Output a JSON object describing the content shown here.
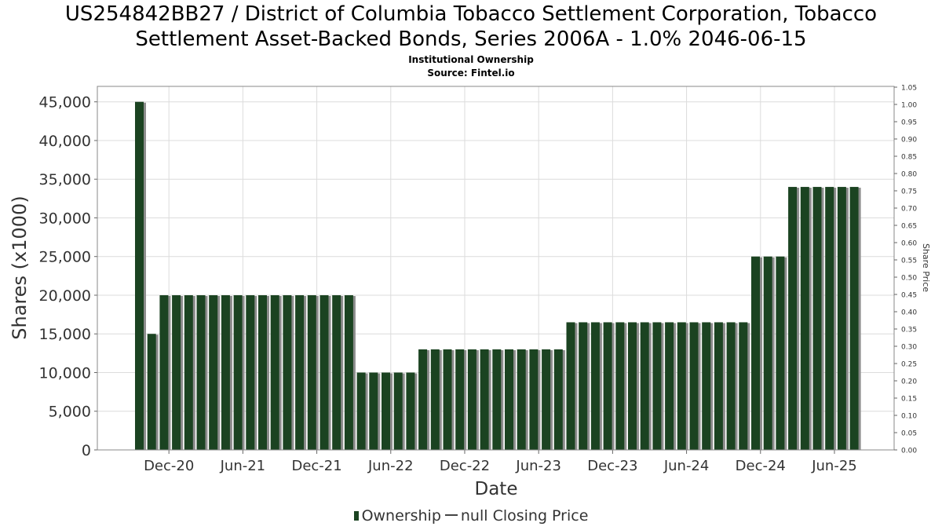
{
  "chart_data": {
    "type": "bar",
    "title_lines": [
      "US254842BB27 / District of Columbia Tobacco Settlement Corporation, Tobacco",
      "Settlement Asset-Backed Bonds, Series 2006A - 1.0% 2046-06-15"
    ],
    "subtitle": "Institutional Ownership",
    "source": "Source: Fintel.io",
    "xlabel": "Date",
    "ylabel": "Shares (x1000)",
    "y2label": "Share Price",
    "ylim": [
      0,
      47000
    ],
    "y2lim": [
      0,
      1.05
    ],
    "yticks": [
      0,
      5000,
      10000,
      15000,
      20000,
      25000,
      30000,
      35000,
      40000,
      45000
    ],
    "ytick_labels": [
      "0",
      "5,000",
      "10,000",
      "15,000",
      "20,000",
      "25,000",
      "30,000",
      "35,000",
      "40,000",
      "45,000"
    ],
    "y2ticks": [
      "0.00",
      "0.05",
      "0.10",
      "0.15",
      "0.20",
      "0.25",
      "0.30",
      "0.35",
      "0.40",
      "0.45",
      "0.50",
      "0.55",
      "0.60",
      "0.65",
      "0.70",
      "0.75",
      "0.80",
      "0.85",
      "0.90",
      "0.95",
      "1.00",
      "1.05"
    ],
    "xticks": [
      {
        "label": "Dec-20",
        "index": 2.4
      },
      {
        "label": "Jun-21",
        "index": 8.4
      },
      {
        "label": "Dec-21",
        "index": 14.4
      },
      {
        "label": "Jun-22",
        "index": 20.4
      },
      {
        "label": "Dec-22",
        "index": 26.4
      },
      {
        "label": "Jun-23",
        "index": 32.4
      },
      {
        "label": "Dec-23",
        "index": 38.4
      },
      {
        "label": "Jun-24",
        "index": 44.4
      },
      {
        "label": "Dec-24",
        "index": 50.4
      },
      {
        "label": "Jun-25",
        "index": 56.4
      }
    ],
    "grid": true,
    "legend_position": "bottom",
    "series": [
      {
        "name": "Ownership",
        "color": "#1b4321",
        "values": [
          45000,
          15000,
          20000,
          20000,
          20000,
          20000,
          20000,
          20000,
          20000,
          20000,
          20000,
          20000,
          20000,
          20000,
          20000,
          20000,
          20000,
          20000,
          10000,
          10000,
          10000,
          10000,
          10000,
          13000,
          13000,
          13000,
          13000,
          13000,
          13000,
          13000,
          13000,
          13000,
          13000,
          13000,
          13000,
          16500,
          16500,
          16500,
          16500,
          16500,
          16500,
          16500,
          16500,
          16500,
          16500,
          16500,
          16500,
          16500,
          16500,
          16500,
          25000,
          25000,
          25000,
          34000,
          34000,
          34000,
          34000,
          34000,
          34000
        ]
      }
    ],
    "legend": {
      "ownership_label": "Ownership",
      "price_label": "null Closing Price"
    }
  },
  "colors": {
    "bar": "#1b4321",
    "bar_shadow": "#8c8c8c",
    "grid": "#dcdcdc"
  }
}
